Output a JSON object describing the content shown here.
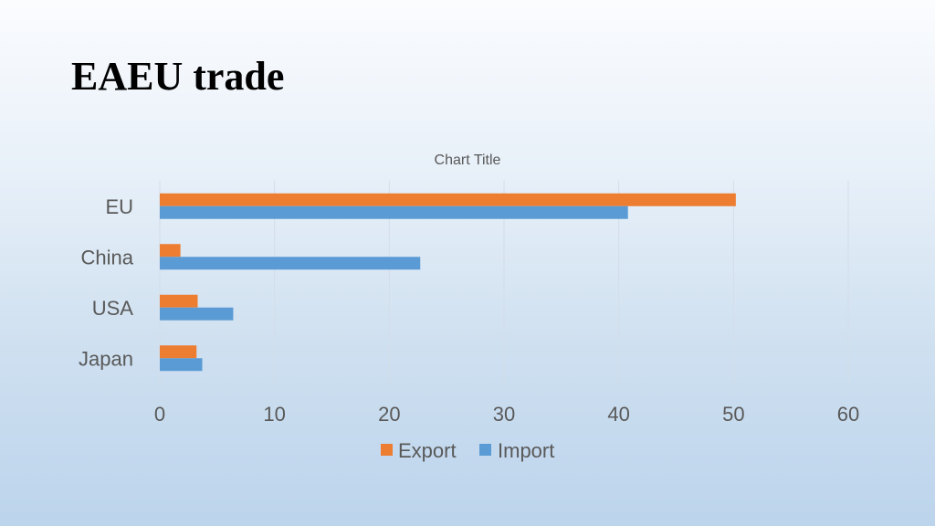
{
  "slide": {
    "title": "EAEU trade"
  },
  "chart_data": {
    "type": "bar",
    "orientation": "horizontal",
    "title": "Chart Title",
    "categories": [
      "EU",
      "China",
      "USA",
      "Japan"
    ],
    "series": [
      {
        "name": "Export",
        "color": "#ED7D31",
        "values": [
          50.2,
          1.8,
          3.3,
          3.2
        ]
      },
      {
        "name": "Import",
        "color": "#5B9BD5",
        "values": [
          40.8,
          22.7,
          6.4,
          3.7
        ]
      }
    ],
    "xlim": [
      0,
      60
    ],
    "xticks": [
      0,
      10,
      20,
      30,
      40,
      50,
      60
    ],
    "grid": true,
    "legend_position": "bottom"
  }
}
